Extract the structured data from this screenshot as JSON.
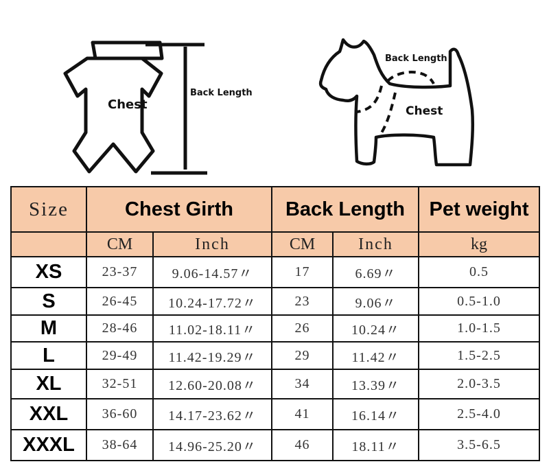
{
  "diagram": {
    "garment_chest_label": "Chest",
    "garment_back_label": "Back Length",
    "dog_back_label": "Back Length",
    "dog_chest_label": "Chest"
  },
  "table": {
    "header": {
      "size": "Size",
      "chest": "Chest Girth",
      "back": "Back Length",
      "weight": "Pet weight"
    },
    "units": [
      "CM",
      "Inch",
      "CM",
      "Inch",
      "kg"
    ],
    "header_color": "#f7caa9",
    "rows": [
      {
        "size": "XS",
        "chest_cm": "23-37",
        "chest_in": "9.06-14.57〃",
        "back_cm": "17",
        "back_in": "6.69〃",
        "weight": "0.5"
      },
      {
        "size": "S",
        "chest_cm": "26-45",
        "chest_in": "10.24-17.72〃",
        "back_cm": "23",
        "back_in": "9.06〃",
        "weight": "0.5-1.0"
      },
      {
        "size": "M",
        "chest_cm": "28-46",
        "chest_in": "11.02-18.11〃",
        "back_cm": "26",
        "back_in": "10.24〃",
        "weight": "1.0-1.5"
      },
      {
        "size": "L",
        "chest_cm": "29-49",
        "chest_in": "11.42-19.29〃",
        "back_cm": "29",
        "back_in": "11.42〃",
        "weight": "1.5-2.5"
      },
      {
        "size": "XL",
        "chest_cm": "32-51",
        "chest_in": "12.60-20.08〃",
        "back_cm": "34",
        "back_in": "13.39〃",
        "weight": "2.0-3.5"
      },
      {
        "size": "XXL",
        "chest_cm": "36-60",
        "chest_in": "14.17-23.62〃",
        "back_cm": "41",
        "back_in": "16.14〃",
        "weight": "2.5-4.0"
      },
      {
        "size": "XXXL",
        "chest_cm": "38-64",
        "chest_in": "14.96-25.20〃",
        "back_cm": "46",
        "back_in": "18.11〃",
        "weight": "3.5-6.5"
      }
    ]
  }
}
